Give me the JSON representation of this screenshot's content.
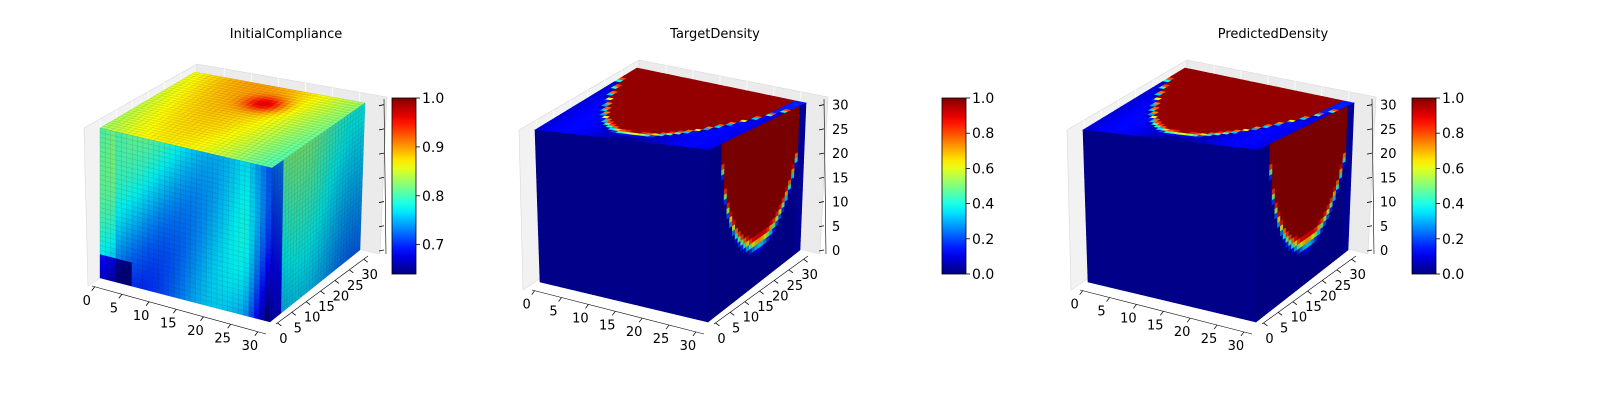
{
  "chart_data": [
    {
      "type": "voxel-3d",
      "title": "InitialCompliance",
      "colormap": "jet",
      "axis_range": [
        0,
        32
      ],
      "x_ticks": [
        "0",
        "5",
        "10",
        "15",
        "20",
        "25",
        "30"
      ],
      "y_ticks": [
        "0",
        "5",
        "10",
        "15",
        "20",
        "25",
        "30"
      ],
      "z_ticks": [],
      "colorbar": {
        "min": 0.64,
        "max": 1.0,
        "ticks": [
          "0.7",
          "0.8",
          "0.9",
          "1.0"
        ]
      },
      "value_range": [
        0.64,
        0.95
      ],
      "pattern": "compliance"
    },
    {
      "type": "voxel-3d",
      "title": "TargetDensity",
      "colormap": "jet",
      "axis_range": [
        0,
        32
      ],
      "x_ticks": [
        "0",
        "5",
        "10",
        "15",
        "20",
        "25",
        "30"
      ],
      "y_ticks": [
        "0",
        "5",
        "10",
        "15",
        "20",
        "25",
        "30"
      ],
      "z_ticks": [
        "0",
        "5",
        "10",
        "15",
        "20",
        "25",
        "30"
      ],
      "colorbar": {
        "min": 0.0,
        "max": 1.0,
        "ticks": [
          "0.0",
          "0.2",
          "0.4",
          "0.6",
          "0.8",
          "1.0"
        ]
      },
      "value_range": [
        0.0,
        1.0
      ],
      "pattern": "density"
    },
    {
      "type": "voxel-3d",
      "title": "PredictedDensity",
      "colormap": "jet",
      "axis_range": [
        0,
        32
      ],
      "x_ticks": [
        "0",
        "5",
        "10",
        "15",
        "20",
        "25",
        "30"
      ],
      "y_ticks": [
        "0",
        "5",
        "10",
        "15",
        "20",
        "25",
        "30"
      ],
      "z_ticks": [
        "0",
        "5",
        "10",
        "15",
        "20",
        "25",
        "30"
      ],
      "colorbar": {
        "min": 0.0,
        "max": 1.0,
        "ticks": [
          "0.0",
          "0.2",
          "0.4",
          "0.6",
          "0.8",
          "1.0"
        ]
      },
      "value_range": [
        0.0,
        1.0
      ],
      "pattern": "density"
    }
  ]
}
